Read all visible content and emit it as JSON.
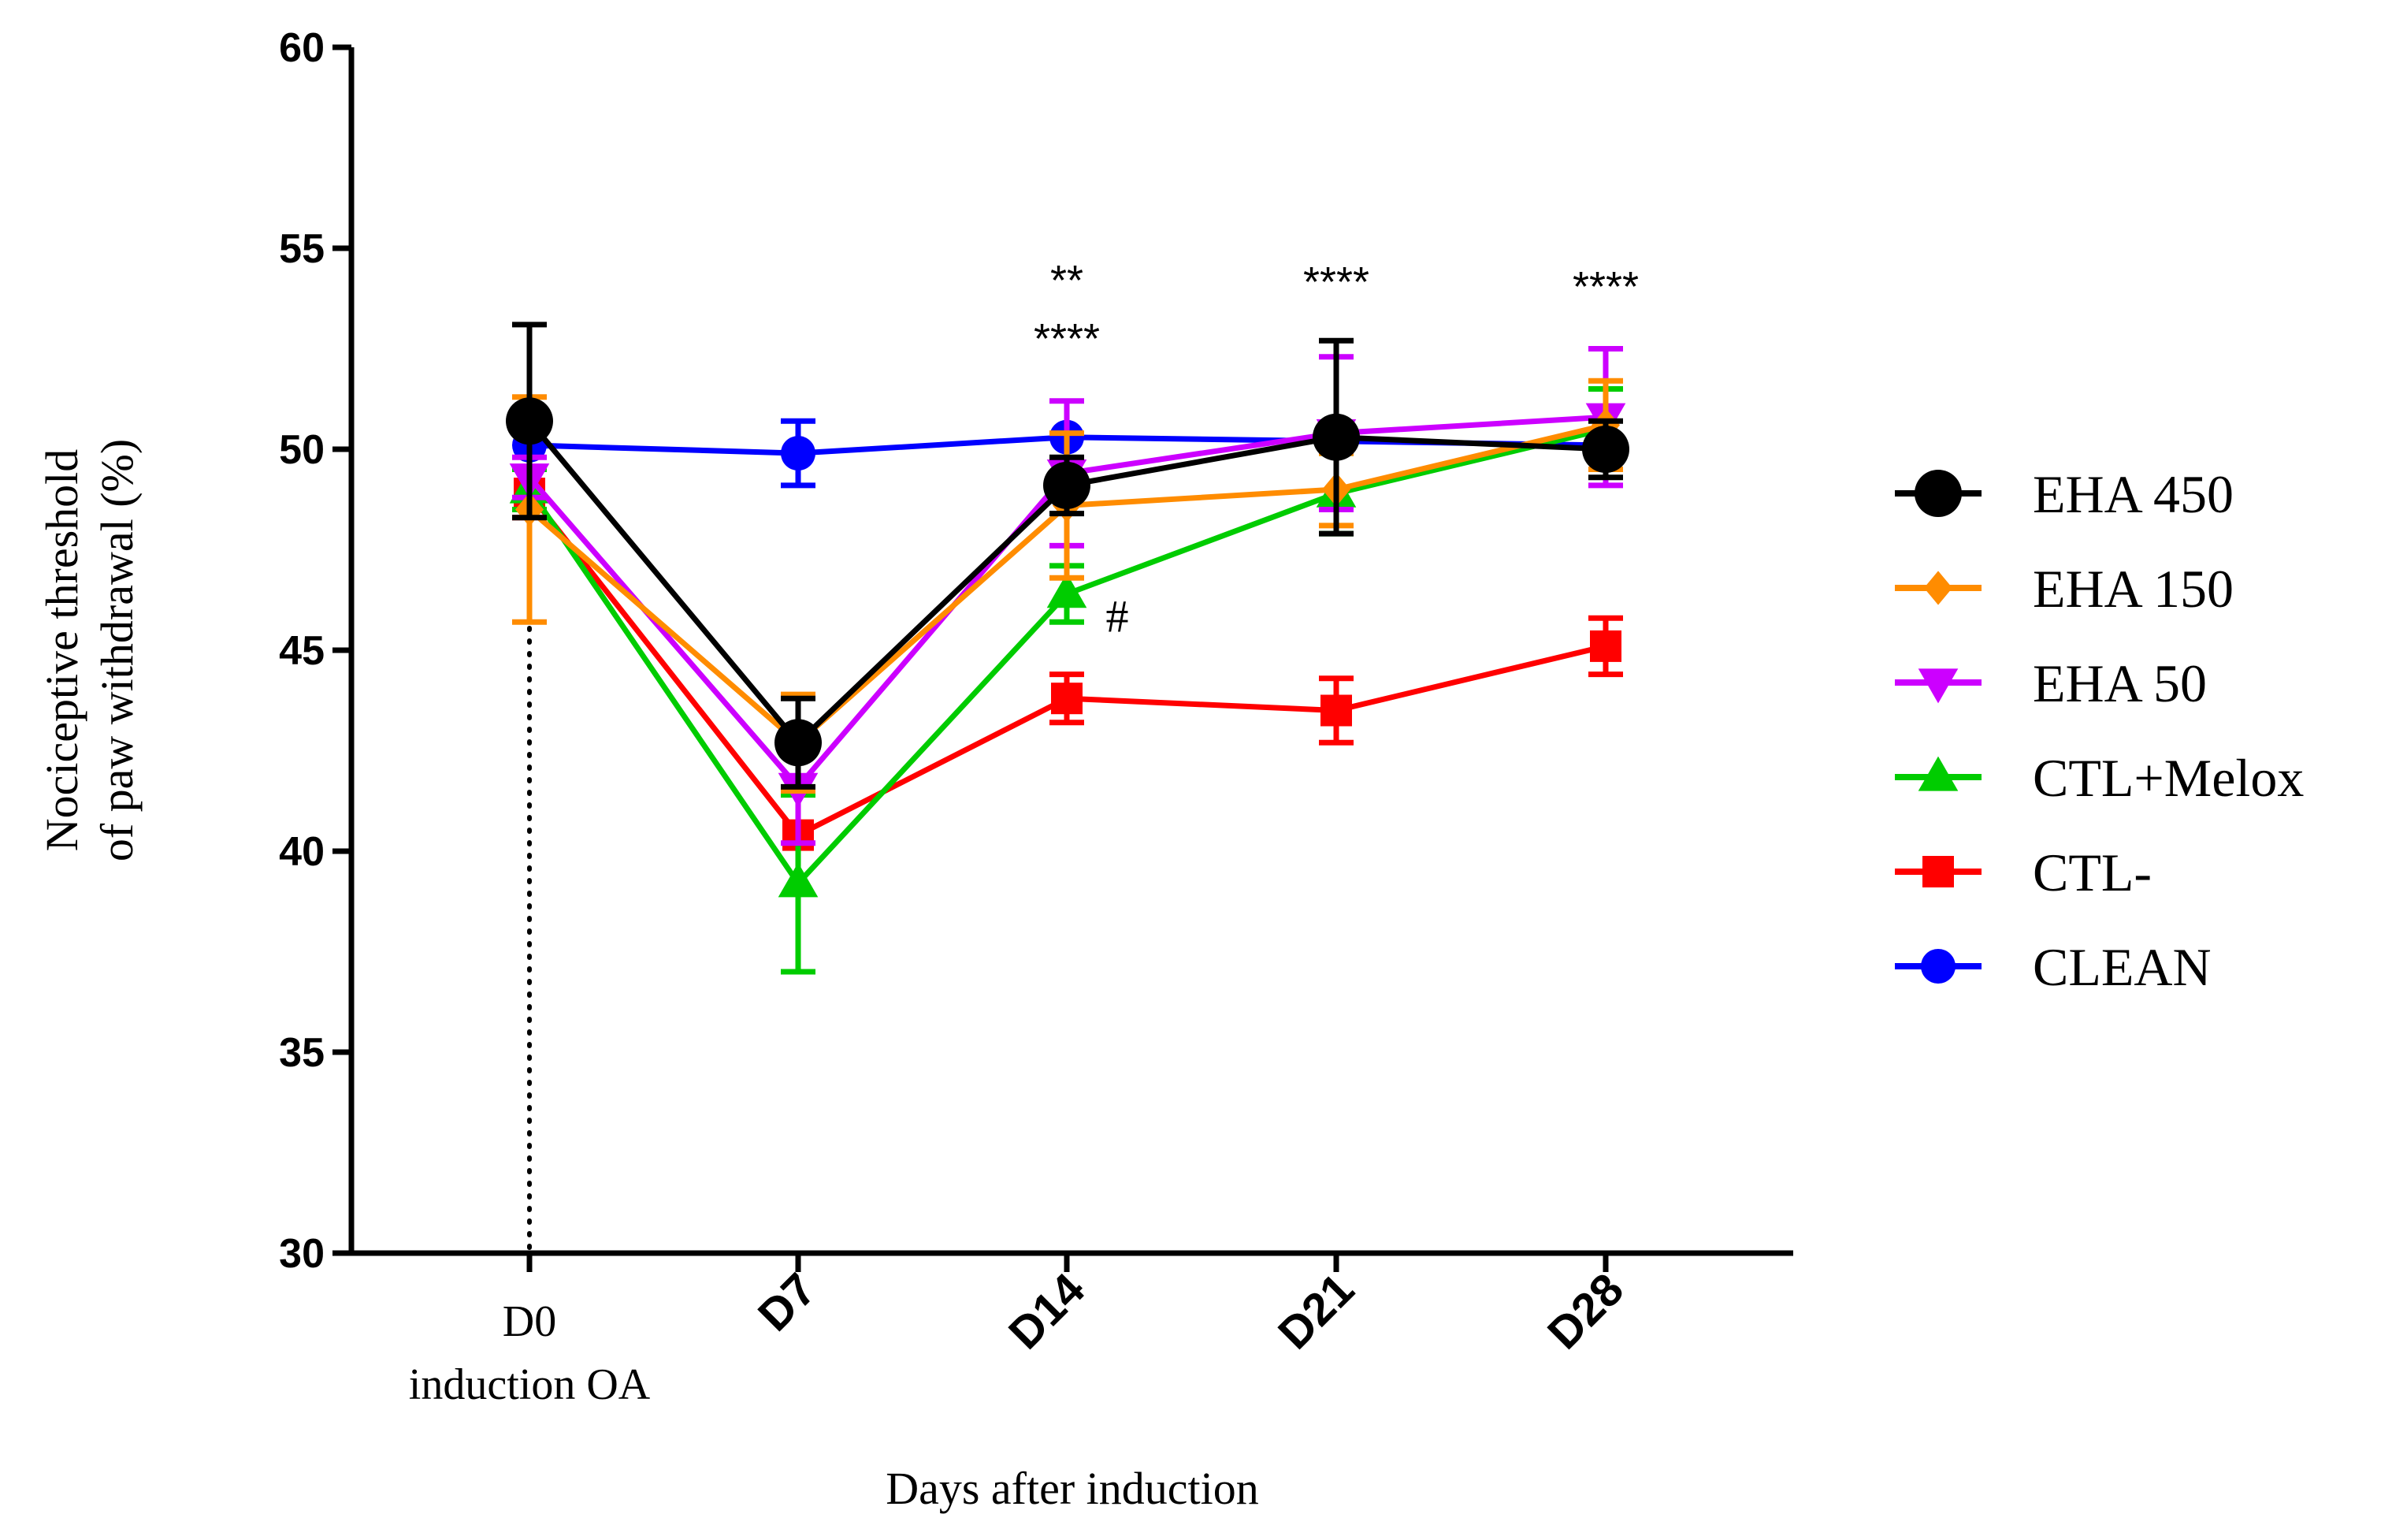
{
  "chart_data": {
    "type": "line",
    "xlabel": "Days after induction",
    "ylabel_lines": [
      "Nociceptive threshold",
      "of paw withdrawal (%)"
    ],
    "ylim": [
      30,
      60
    ],
    "yticks": [
      30,
      35,
      40,
      45,
      50,
      55,
      60
    ],
    "categories": [
      "D0",
      "D7",
      "D14",
      "D21",
      "D28"
    ],
    "first_category_sublabel": "induction OA",
    "vertical_reference_line": "D0",
    "grid": false,
    "legend_position": "right",
    "series": [
      {
        "name": "CLEAN",
        "color": "#0000ff",
        "marker": "circle",
        "values": [
          50.1,
          49.9,
          50.3,
          50.2,
          50.1
        ],
        "err": [
          0.0,
          0.8,
          0.0,
          0.0,
          0.0
        ]
      },
      {
        "name": "CTL-",
        "color": "#ff0000",
        "marker": "square",
        "values": [
          48.9,
          40.4,
          43.8,
          43.5,
          45.1
        ],
        "err": [
          0.6,
          0.0,
          0.6,
          0.8,
          0.7
        ]
      },
      {
        "name": "CTL+Melox",
        "color": "#00cc00",
        "marker": "triangle-up",
        "values": [
          49.0,
          39.2,
          46.4,
          48.9,
          50.5
        ],
        "err": [
          0.5,
          2.2,
          0.7,
          1.0,
          1.0
        ]
      },
      {
        "name": "EHA 50",
        "color": "#cc00ff",
        "marker": "triangle-down",
        "values": [
          49.3,
          41.6,
          49.4,
          50.4,
          50.8
        ],
        "err": [
          0.5,
          1.4,
          1.8,
          1.9,
          1.7
        ]
      },
      {
        "name": "EHA 150",
        "color": "#ff8c00",
        "marker": "diamond",
        "values": [
          48.5,
          42.7,
          48.6,
          49.0,
          50.6
        ],
        "err": [
          2.8,
          1.2,
          1.8,
          0.9,
          1.1
        ]
      },
      {
        "name": "EHA 450",
        "color": "#000000",
        "marker": "circle",
        "values": [
          50.7,
          42.7,
          49.1,
          50.3,
          50.0
        ],
        "err": [
          2.4,
          1.1,
          0.7,
          2.4,
          0.7
        ]
      }
    ],
    "legend_order": [
      "EHA 450",
      "EHA 150",
      "EHA 50",
      "CTL+Melox",
      "CTL-",
      "CLEAN"
    ],
    "annotations": [
      {
        "category": "D14",
        "lines": [
          "**",
          "****"
        ]
      },
      {
        "category": "D21",
        "lines": [
          "****"
        ]
      },
      {
        "category": "D28",
        "lines": [
          "****"
        ]
      },
      {
        "category": "D14",
        "text": "#",
        "near_series": "CTL+Melox"
      }
    ]
  }
}
